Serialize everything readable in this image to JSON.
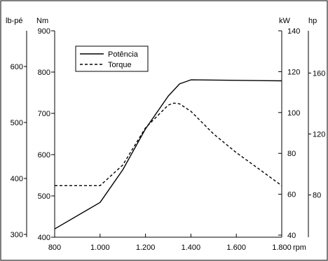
{
  "chart_data": {
    "type": "line",
    "xlabel": "rpm",
    "xlim": [
      800,
      1800
    ],
    "x_ticks": [
      {
        "value": 800,
        "label": "800"
      },
      {
        "value": 1000,
        "label": "1.000"
      },
      {
        "value": 1200,
        "label": "1.200"
      },
      {
        "value": 1400,
        "label": "1.400"
      },
      {
        "value": 1600,
        "label": "1.600"
      },
      {
        "value": 1800,
        "label": "1.800"
      }
    ],
    "axes": {
      "nm": {
        "unit": "Nm",
        "ylim": [
          400,
          900
        ],
        "ticks": [
          400,
          500,
          600,
          700,
          800,
          900
        ]
      },
      "lbft": {
        "unit": "lb-pé",
        "ticks": [
          300,
          400,
          500,
          600
        ]
      },
      "kw": {
        "unit": "kW",
        "ylim": [
          40,
          140
        ],
        "ticks": [
          40,
          60,
          80,
          100,
          120,
          140
        ]
      },
      "hp": {
        "unit": "hp",
        "ticks": [
          80,
          120,
          160
        ]
      }
    },
    "series": [
      {
        "name": "Potência",
        "axis": "kw",
        "style": "solid",
        "x": [
          800,
          1000,
          1100,
          1200,
          1300,
          1350,
          1400,
          1800
        ],
        "y": [
          43,
          56,
          72,
          92,
          108,
          114,
          116,
          115.5
        ]
      },
      {
        "name": "Torque",
        "axis": "nm",
        "style": "dashed",
        "x": [
          800,
          1000,
          1100,
          1200,
          1300,
          1325,
          1350,
          1400,
          1500,
          1600,
          1700,
          1800
        ],
        "y": [
          525,
          525,
          575,
          665,
          720,
          725,
          723,
          705,
          650,
          605,
          565,
          525
        ]
      }
    ],
    "legend": {
      "position": "top-left",
      "inset": true
    },
    "grid": false
  }
}
